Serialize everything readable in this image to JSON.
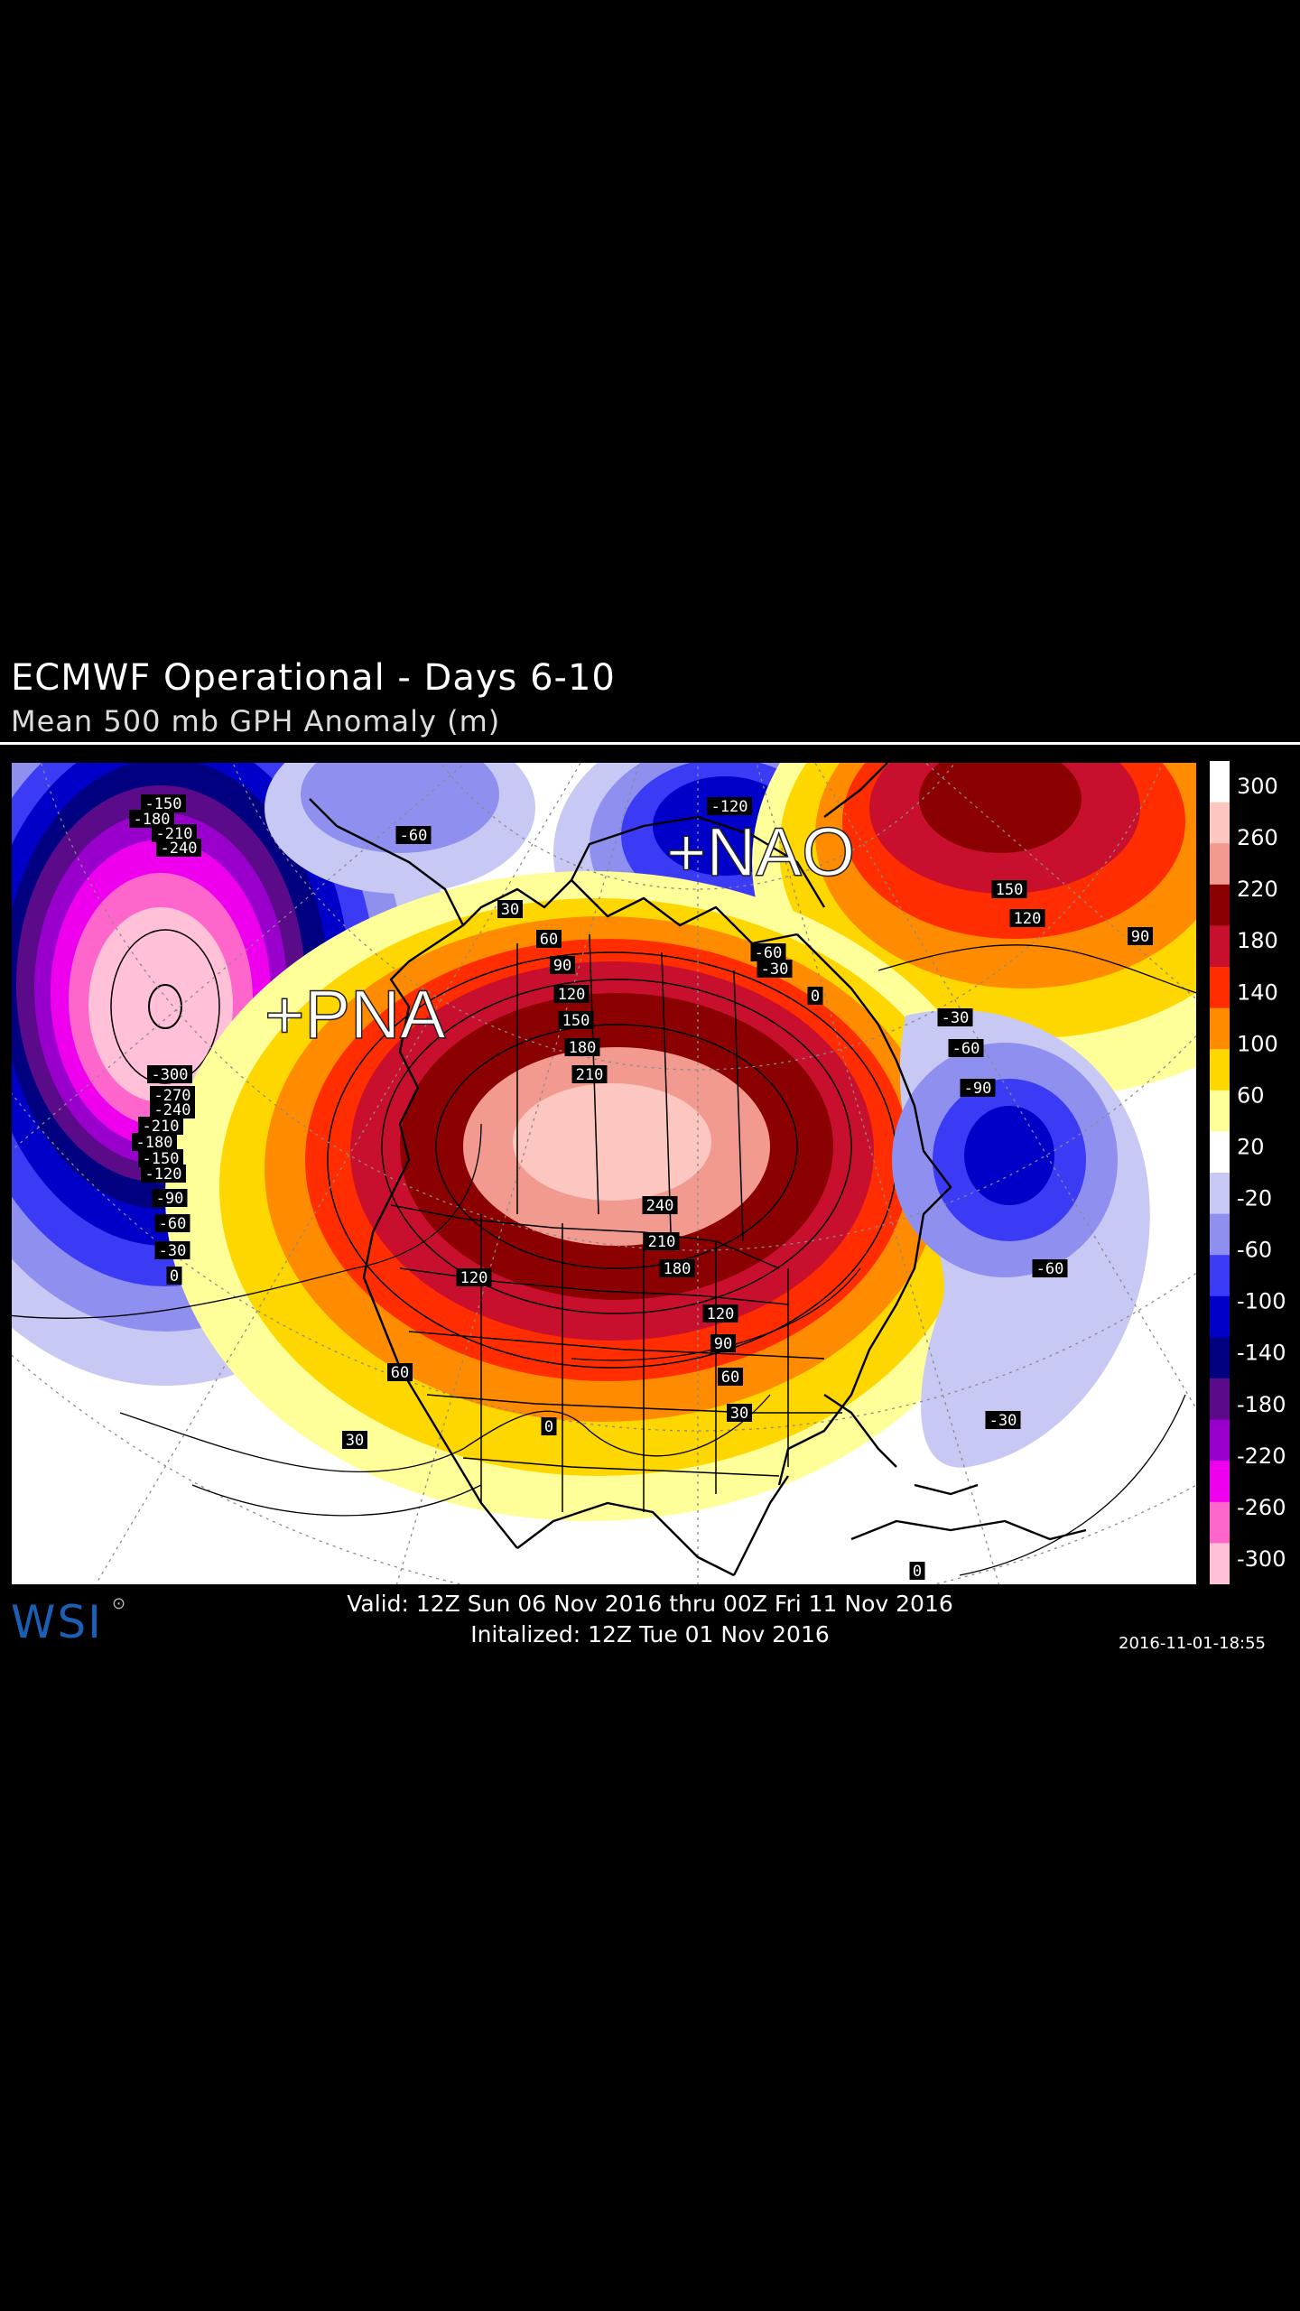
{
  "header": {
    "title": "ECMWF Operational - Days 6-10",
    "subtitle": "Mean 500 mb GPH Anomaly (m)"
  },
  "map": {
    "annotations": [
      "+PNA",
      "+NAO"
    ],
    "contour_labels": {
      "west_low": [
        "-150",
        "-180",
        "-210",
        "-240",
        "-300",
        "-270",
        "-240",
        "-210",
        "-180",
        "-150",
        "-120",
        "-90",
        "-60",
        "-30",
        "0"
      ],
      "aleutian": [
        "-60"
      ],
      "davis_strait": [
        "-120",
        "-60",
        "-30",
        "0"
      ],
      "central_ridge": [
        "30",
        "60",
        "90",
        "120",
        "150",
        "180",
        "210",
        "240",
        "210",
        "180",
        "120",
        "120",
        "90",
        "60",
        "30",
        "60",
        "0",
        "30"
      ],
      "atlantic_low": [
        "-30",
        "-60",
        "-90",
        "-60",
        "-30"
      ],
      "east_ridge": [
        "150",
        "120",
        "90"
      ],
      "tropics": [
        "0"
      ]
    }
  },
  "legend": {
    "ticks": [
      "300",
      "260",
      "220",
      "180",
      "140",
      "100",
      "60",
      "20",
      "-20",
      "-60",
      "-100",
      "-140",
      "-180",
      "-220",
      "-260",
      "-300"
    ],
    "colors": [
      "#ffffff",
      "#fbc7c0",
      "#f29a8f",
      "#8b0000",
      "#c8102e",
      "#ff2d00",
      "#ff8c00",
      "#ffd700",
      "#ffff99",
      "#ffffff",
      "#c8c8f5",
      "#8f8ff0",
      "#3b3bf5",
      "#0000c8",
      "#000080",
      "#5b0a8a",
      "#9900cc",
      "#ee00ee",
      "#ff66cc",
      "#ffc0d8"
    ]
  },
  "footer": {
    "valid": "Valid: 12Z Sun 06 Nov 2016 thru 00Z Fri 11 Nov 2016",
    "initialized": "Initalized: 12Z Tue 01 Nov 2016",
    "timestamp": "2016-11-01-18:55",
    "logo": "WSI"
  }
}
